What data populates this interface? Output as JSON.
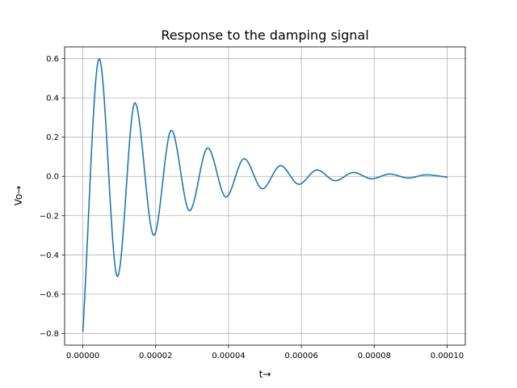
{
  "chart_data": {
    "type": "line",
    "title": "Response to the damping signal",
    "xlabel": "t→",
    "ylabel": "Vo→",
    "xlim": [
      -5e-06,
      0.000105
    ],
    "ylim": [
      -0.86,
      0.66
    ],
    "grid": true,
    "x_ticks": [
      0.0,
      2e-05,
      4e-05,
      6e-05,
      8e-05,
      0.0001
    ],
    "x_tick_labels": [
      "0.00000",
      "0.00002",
      "0.00004",
      "0.00006",
      "0.00008",
      "0.00010"
    ],
    "y_ticks": [
      -0.8,
      -0.6,
      -0.4,
      -0.2,
      0.0,
      0.2,
      0.4,
      0.6
    ],
    "y_tick_labels": [
      "−0.8",
      "−0.6",
      "−0.4",
      "−0.2",
      "0.0",
      "0.2",
      "0.4",
      "0.6"
    ],
    "series": [
      {
        "color": "#1f77b4",
        "x": [
          0.0,
          4.5e-06,
          9.5e-06,
          1.43e-05,
          1.95e-05,
          2.43e-05,
          2.93e-05,
          3.43e-05,
          3.93e-05,
          4.43e-05,
          4.93e-05,
          5.43e-05,
          5.93e-05,
          6.43e-05,
          6.93e-05,
          7.43e-05,
          7.93e-05,
          8.43e-05,
          8.93e-05,
          9.43e-05,
          0.0001
        ],
        "values": [
          -0.79,
          0.6,
          -0.51,
          0.375,
          -0.3,
          0.235,
          -0.175,
          0.145,
          -0.105,
          0.09,
          -0.063,
          0.055,
          -0.04,
          0.033,
          -0.022,
          0.02,
          -0.012,
          0.012,
          -0.008,
          0.008,
          -0.004
        ]
      }
    ]
  }
}
